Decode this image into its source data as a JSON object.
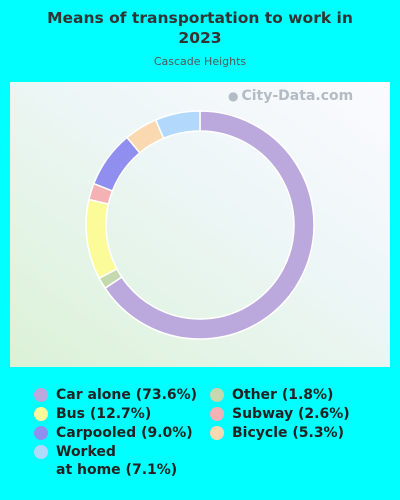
{
  "chart_data": {
    "type": "pie",
    "title": "Means of transportation to work in 2023",
    "subtitle": "Cascade Heights",
    "series": [
      {
        "name": "Car alone",
        "value": 73.6,
        "label": "Car alone (73.6%)",
        "color": "#bba8dc"
      },
      {
        "name": "Other",
        "value": 1.8,
        "label": "Other (1.8%)",
        "color": "#c4d9ae"
      },
      {
        "name": "Bus",
        "value": 12.7,
        "label": "Bus (12.7%)",
        "color": "#fbfb9a"
      },
      {
        "name": "Subway",
        "value": 2.6,
        "label": "Subway (2.6%)",
        "color": "#f4b2b4"
      },
      {
        "name": "Carpooled",
        "value": 9.0,
        "label": "Carpooled (9.0%)",
        "color": "#908ff0"
      },
      {
        "name": "Bicycle",
        "value": 5.3,
        "label": "Bicycle (5.3%)",
        "color": "#fbd9b0"
      },
      {
        "name": "Worked at home",
        "value": 7.1,
        "label": "Worked\nat home (7.1%)",
        "color": "#b2d9fb"
      }
    ]
  },
  "watermark": "City-Data.com"
}
